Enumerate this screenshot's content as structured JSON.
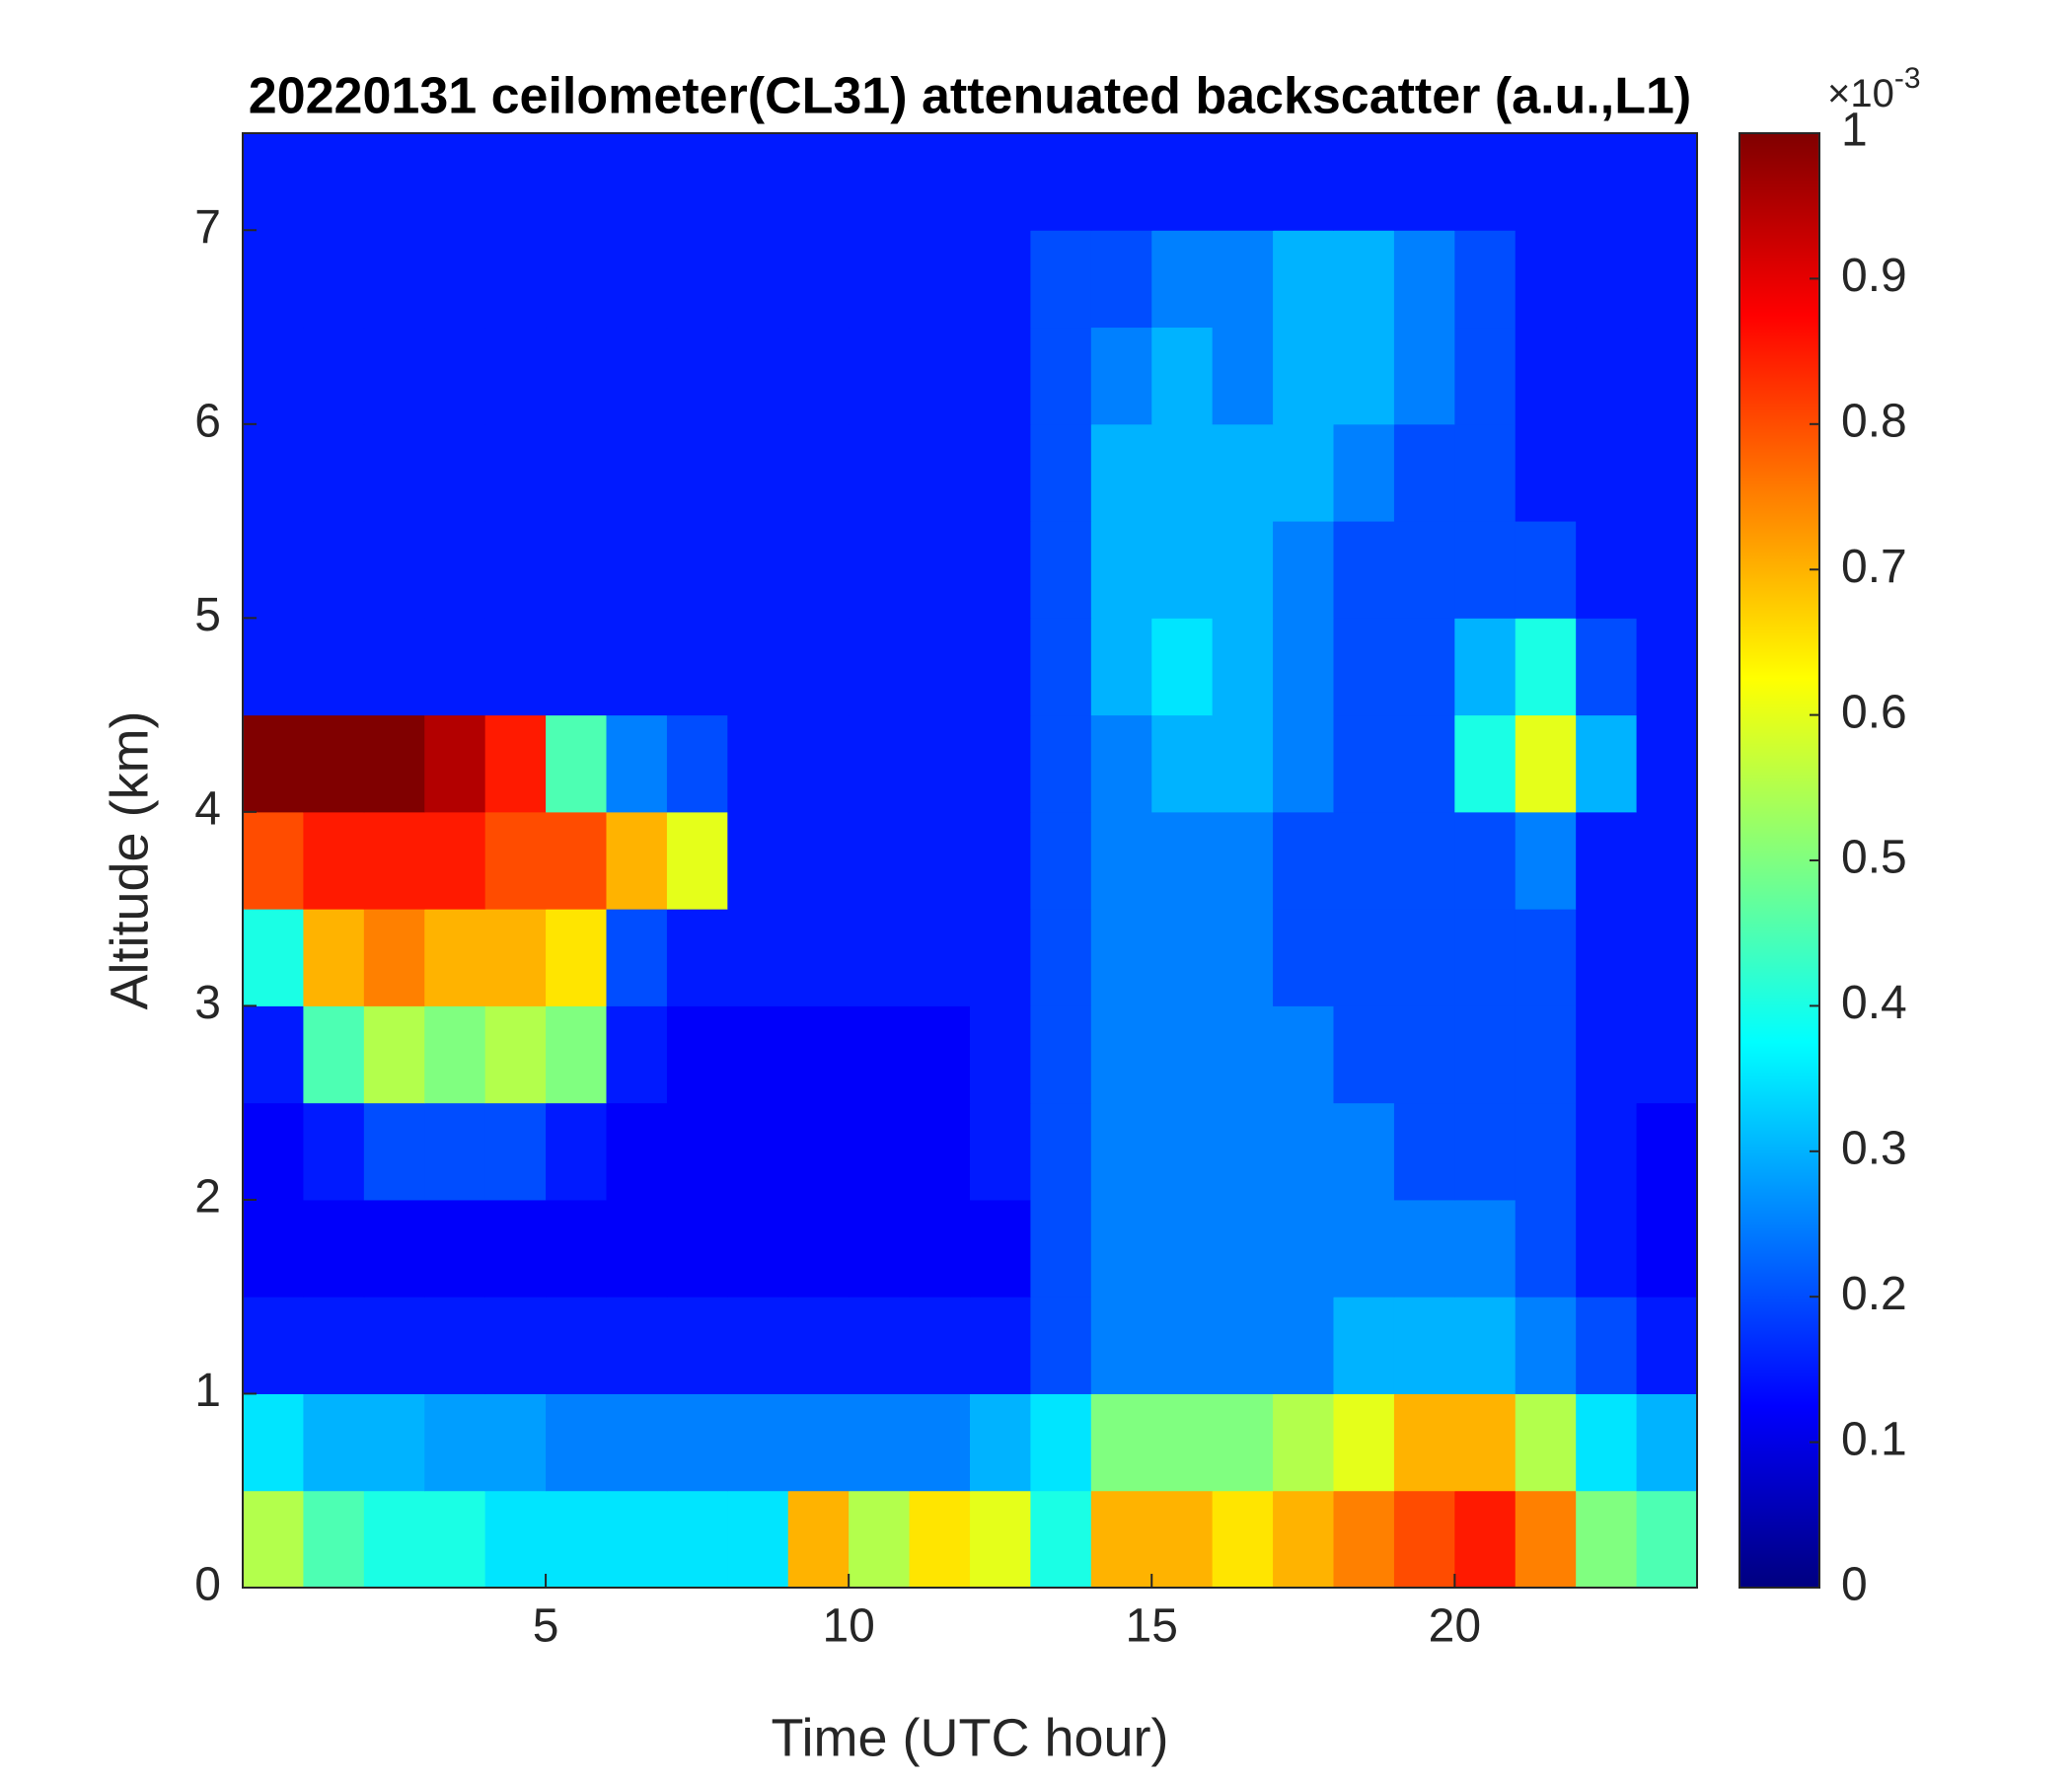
{
  "chart_data": {
    "type": "heatmap",
    "title": "20220131 ceilometer(CL31) attenuated backscatter (a.u.,L1)",
    "xlabel": "Time (UTC hour)",
    "ylabel": "Altitude (km)",
    "colormap": "jet",
    "xbins": [
      0,
      1,
      2,
      3,
      4,
      5,
      6,
      7,
      8,
      9,
      10,
      11,
      12,
      13,
      14,
      15,
      16,
      17,
      18,
      19,
      20,
      21,
      22,
      23,
      24
    ],
    "ybins": [
      0,
      0.5,
      1,
      1.5,
      2,
      2.5,
      3,
      3.5,
      4,
      4.5,
      5,
      5.5,
      6,
      6.5,
      7,
      7.5
    ],
    "z": [
      [
        0.55,
        0.45,
        0.4,
        0.4,
        0.35,
        0.35,
        0.35,
        0.35,
        0.35,
        0.7,
        0.55,
        0.65,
        0.6,
        0.4,
        0.7,
        0.7,
        0.65,
        0.7,
        0.75,
        0.8,
        0.85,
        0.75,
        0.5,
        0.45
      ],
      [
        0.35,
        0.3,
        0.3,
        0.28,
        0.28,
        0.25,
        0.25,
        0.25,
        0.25,
        0.25,
        0.25,
        0.25,
        0.3,
        0.35,
        0.5,
        0.5,
        0.5,
        0.55,
        0.6,
        0.7,
        0.7,
        0.55,
        0.35,
        0.3
      ],
      [
        0.15,
        0.15,
        0.15,
        0.15,
        0.15,
        0.15,
        0.15,
        0.15,
        0.15,
        0.15,
        0.15,
        0.15,
        0.15,
        0.2,
        0.25,
        0.25,
        0.25,
        0.25,
        0.3,
        0.3,
        0.3,
        0.25,
        0.2,
        0.15
      ],
      [
        0.12,
        0.12,
        0.12,
        0.12,
        0.12,
        0.12,
        0.12,
        0.12,
        0.12,
        0.12,
        0.12,
        0.12,
        0.12,
        0.2,
        0.25,
        0.25,
        0.25,
        0.25,
        0.25,
        0.25,
        0.25,
        0.2,
        0.15,
        0.12
      ],
      [
        0.12,
        0.15,
        0.2,
        0.2,
        0.2,
        0.15,
        0.12,
        0.12,
        0.12,
        0.12,
        0.12,
        0.12,
        0.15,
        0.2,
        0.25,
        0.25,
        0.25,
        0.25,
        0.25,
        0.2,
        0.2,
        0.2,
        0.15,
        0.12
      ],
      [
        0.15,
        0.45,
        0.55,
        0.5,
        0.55,
        0.5,
        0.15,
        0.12,
        0.12,
        0.12,
        0.12,
        0.12,
        0.15,
        0.2,
        0.25,
        0.25,
        0.25,
        0.25,
        0.2,
        0.2,
        0.2,
        0.2,
        0.15,
        0.15
      ],
      [
        0.4,
        0.7,
        0.75,
        0.7,
        0.7,
        0.65,
        0.2,
        0.15,
        0.15,
        0.15,
        0.15,
        0.15,
        0.15,
        0.2,
        0.25,
        0.25,
        0.25,
        0.2,
        0.2,
        0.2,
        0.2,
        0.2,
        0.15,
        0.15
      ],
      [
        0.8,
        0.85,
        0.85,
        0.85,
        0.8,
        0.8,
        0.7,
        0.6,
        0.15,
        0.15,
        0.15,
        0.15,
        0.15,
        0.2,
        0.25,
        0.25,
        0.25,
        0.2,
        0.2,
        0.2,
        0.2,
        0.25,
        0.15,
        0.15
      ],
      [
        1,
        1,
        1,
        0.95,
        0.85,
        0.45,
        0.25,
        0.2,
        0.15,
        0.15,
        0.15,
        0.15,
        0.15,
        0.2,
        0.25,
        0.3,
        0.3,
        0.25,
        0.2,
        0.2,
        0.4,
        0.6,
        0.3,
        0.15
      ],
      [
        0.15,
        0.15,
        0.15,
        0.15,
        0.15,
        0.15,
        0.15,
        0.15,
        0.15,
        0.15,
        0.15,
        0.15,
        0.15,
        0.2,
        0.3,
        0.35,
        0.3,
        0.25,
        0.2,
        0.2,
        0.3,
        0.4,
        0.2,
        0.15
      ],
      [
        0.15,
        0.15,
        0.15,
        0.15,
        0.15,
        0.15,
        0.15,
        0.15,
        0.15,
        0.15,
        0.15,
        0.15,
        0.15,
        0.2,
        0.3,
        0.3,
        0.3,
        0.25,
        0.2,
        0.2,
        0.2,
        0.2,
        0.15,
        0.15
      ],
      [
        0.15,
        0.15,
        0.15,
        0.15,
        0.15,
        0.15,
        0.15,
        0.15,
        0.15,
        0.15,
        0.15,
        0.15,
        0.15,
        0.2,
        0.3,
        0.3,
        0.3,
        0.3,
        0.25,
        0.2,
        0.2,
        0.15,
        0.15,
        0.15
      ],
      [
        0.15,
        0.15,
        0.15,
        0.15,
        0.15,
        0.15,
        0.15,
        0.15,
        0.15,
        0.15,
        0.15,
        0.15,
        0.15,
        0.2,
        0.25,
        0.3,
        0.25,
        0.3,
        0.3,
        0.25,
        0.2,
        0.15,
        0.15,
        0.15
      ],
      [
        0.15,
        0.15,
        0.15,
        0.15,
        0.15,
        0.15,
        0.15,
        0.15,
        0.15,
        0.15,
        0.15,
        0.15,
        0.15,
        0.2,
        0.2,
        0.25,
        0.25,
        0.3,
        0.3,
        0.25,
        0.2,
        0.15,
        0.15,
        0.15
      ],
      [
        0.15,
        0.15,
        0.15,
        0.15,
        0.15,
        0.15,
        0.15,
        0.15,
        0.15,
        0.15,
        0.15,
        0.15,
        0.15,
        0.15,
        0.15,
        0.15,
        0.15,
        0.15,
        0.15,
        0.15,
        0.15,
        0.15,
        0.15,
        0.15
      ]
    ],
    "xlim": [
      0,
      24
    ],
    "xticks": [
      5,
      10,
      15,
      20
    ],
    "ylim": [
      0,
      7.5
    ],
    "yticks": [
      0,
      1,
      2,
      3,
      4,
      5,
      6,
      7
    ],
    "colorbar": {
      "clim": [
        0,
        1
      ],
      "ticks": [
        0,
        0.1,
        0.2,
        0.3,
        0.4,
        0.5,
        0.6,
        0.7,
        0.8,
        0.9,
        1
      ],
      "multiplier_base": "×10",
      "multiplier_exponent": "-3"
    }
  }
}
